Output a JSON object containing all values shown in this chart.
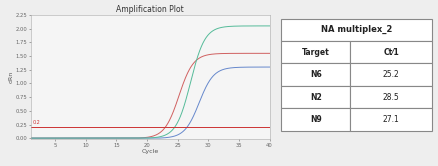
{
  "title": "Amplification Plot",
  "xlabel": "Cycle",
  "ylabel": "dRn",
  "xlim": [
    1,
    40
  ],
  "ylim": [
    -0.02,
    2.25
  ],
  "yticks": [
    0.0,
    0.25,
    0.5,
    0.75,
    1.0,
    1.25,
    1.5,
    1.75,
    2.0,
    2.25
  ],
  "xticks": [
    5,
    10,
    15,
    20,
    25,
    30,
    35,
    40
  ],
  "threshold": 0.2,
  "threshold_label": "0.2",
  "curves": [
    {
      "name": "N6",
      "color": "#d06060",
      "ct": 25.2,
      "plateau": 1.55,
      "hill_slope": 0.85
    },
    {
      "name": "N2",
      "color": "#6688cc",
      "ct": 28.5,
      "plateau": 1.3,
      "hill_slope": 0.85
    },
    {
      "name": "N9",
      "color": "#55bb99",
      "ct": 27.1,
      "plateau": 2.05,
      "hill_slope": 0.85
    }
  ],
  "table_header": "NA multiplex_2",
  "table_col1": "Target",
  "table_col2": "Ct⁄1",
  "table_rows": [
    [
      "N6",
      "25.2"
    ],
    [
      "N2",
      "28.5"
    ],
    [
      "N9",
      "27.1"
    ]
  ],
  "bg_color": "#eeeeee",
  "plot_bg": "#f5f5f5",
  "title_fontsize": 5.5,
  "axis_fontsize": 4.5,
  "tick_fontsize": 3.8,
  "table_header_fontsize": 6.0,
  "table_cell_fontsize": 5.5
}
